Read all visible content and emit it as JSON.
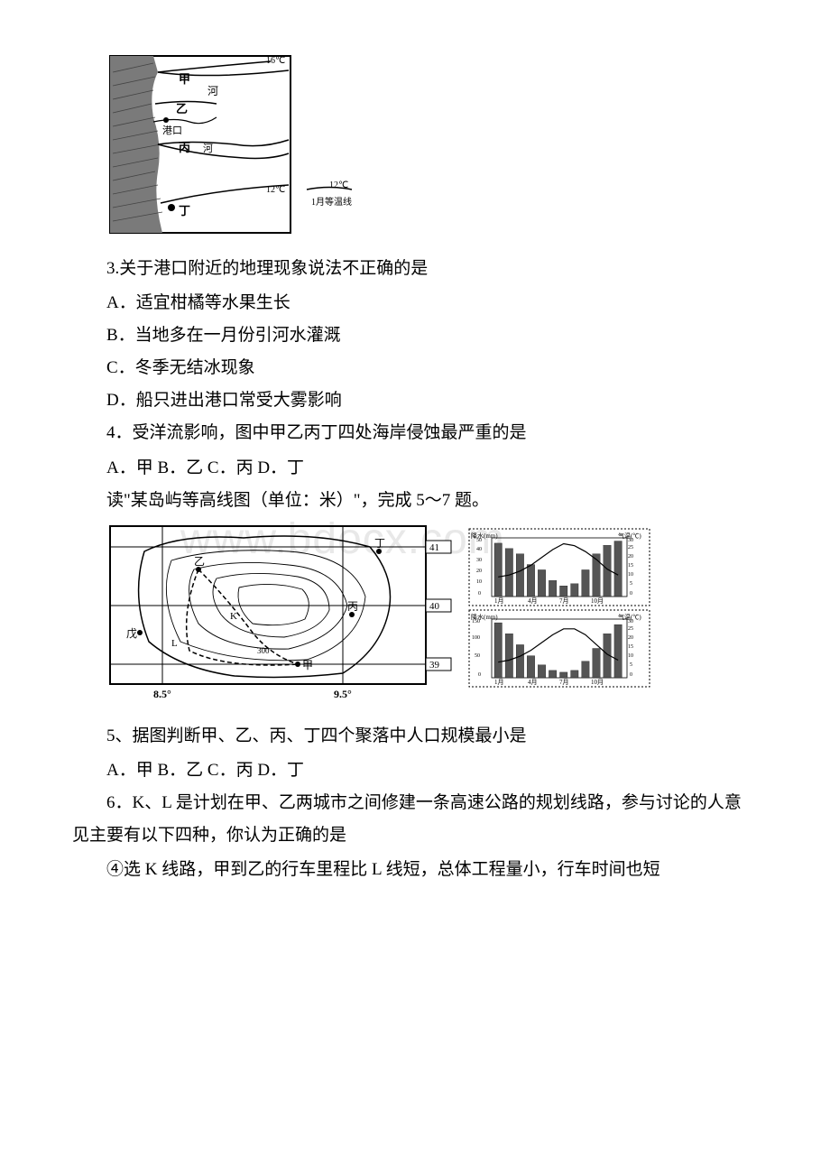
{
  "watermark": "www.bdocx.com",
  "map1": {
    "labels": {
      "jia": "甲",
      "yi": "乙",
      "bing": "丙",
      "ding": "丁",
      "he": "河",
      "port": "港口",
      "iso16": "16℃",
      "iso12a": "12℃",
      "iso12b": "12℃",
      "legend": "1月等温线"
    },
    "colors": {
      "stroke": "#000000",
      "fill_land": "#ffffff",
      "fill_sea": "#888888"
    }
  },
  "q3": {
    "stem": "3.关于港口附近的地理现象说法不正确的是",
    "A": "A．适宜柑橘等水果生长",
    "B": "B．当地多在一月份引河水灌溉",
    "C": "C．冬季无结冰现象",
    "D": "D．船只进出港口常受大雾影响"
  },
  "q4": {
    "stem": "4．受洋流影响，图中甲乙丙丁四处海岸侵蚀最严重的是",
    "options": "A．甲 B．乙 C．丙 D．丁"
  },
  "readPrompt": "读\"某岛屿等高线图（单位：米）\"，完成 5～7 题。",
  "island": {
    "labels": {
      "jia": "甲",
      "yi": "乙",
      "bing": "丙",
      "ding": "丁",
      "wu": "戊",
      "lon1": "8.5°",
      "lon2": "9.5°",
      "lat39": "39",
      "lat40": "40",
      "lat41": "41",
      "contour": "300",
      "K": "K",
      "L": "L"
    },
    "climate": {
      "months": [
        "1月",
        "4月",
        "7月",
        "10月"
      ],
      "temp_label": "气温(℃)",
      "rain_label": "降水(mm)",
      "chart1_rain": [
        50,
        45,
        40,
        30,
        25,
        15,
        10,
        12,
        25,
        40,
        48,
        52
      ],
      "chart1_temp": [
        10,
        11,
        13,
        16,
        20,
        24,
        27,
        26,
        23,
        19,
        14,
        11
      ],
      "chart2_rain": [
        150,
        120,
        90,
        60,
        35,
        20,
        15,
        20,
        45,
        80,
        120,
        145
      ],
      "chart2_temp": [
        8,
        9,
        11,
        14,
        18,
        22,
        25,
        25,
        22,
        17,
        12,
        9
      ],
      "temp_ticks": [
        0,
        5,
        10,
        15,
        20,
        25,
        30
      ],
      "rain_ticks1": [
        0,
        10,
        20,
        30,
        40,
        50
      ],
      "rain_ticks2": [
        0,
        50,
        100,
        150
      ]
    }
  },
  "q5": {
    "stem": "5、据图判断甲、乙、丙、丁四个聚落中人口规模最小是",
    "options": "A．甲 B．乙 C．丙 D．丁"
  },
  "q6": {
    "stem": "6．K、L 是计划在甲、乙两城市之间修建一条高速公路的规划线路，参与讨论的人意见主要有以下四种，你认为正确的是",
    "opt4": "④选 K 线路，甲到乙的行车里程比 L 线短，总体工程量小，行车时间也短"
  }
}
